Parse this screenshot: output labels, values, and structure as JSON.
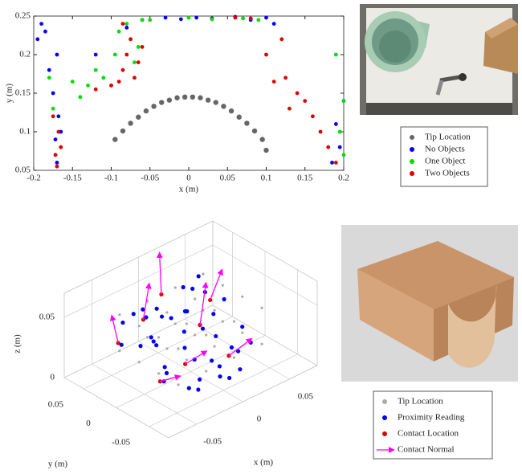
{
  "chart_data": [
    {
      "type": "scatter",
      "xlabel": "x (m)",
      "ylabel": "y (m)",
      "xlim": [
        -0.2,
        0.2
      ],
      "ylim": [
        0.05,
        0.25
      ],
      "xticks": [
        -0.2,
        -0.15,
        -0.1,
        -0.05,
        0,
        0.05,
        0.1,
        0.15,
        0.2
      ],
      "yticks": [
        0.05,
        0.1,
        0.15,
        0.2,
        0.25
      ],
      "grid": false,
      "legend": "outside-right",
      "series": [
        {
          "name": "Tip Location",
          "color": "#666666",
          "x": [
            -0.095,
            -0.085,
            -0.075,
            -0.065,
            -0.055,
            -0.045,
            -0.035,
            -0.025,
            -0.015,
            -0.005,
            0.005,
            0.015,
            0.025,
            0.035,
            0.045,
            0.055,
            0.065,
            0.075,
            0.085,
            0.095,
            0.1
          ],
          "y": [
            0.09,
            0.101,
            0.111,
            0.119,
            0.127,
            0.133,
            0.138,
            0.141,
            0.144,
            0.145,
            0.145,
            0.144,
            0.141,
            0.138,
            0.133,
            0.127,
            0.119,
            0.111,
            0.101,
            0.09,
            0.076
          ]
        },
        {
          "name": "No Objects",
          "color": "#0000ff",
          "x": [
            -0.17,
            -0.172,
            -0.168,
            -0.175,
            -0.17,
            -0.185,
            -0.19,
            -0.18,
            -0.195,
            -0.06,
            -0.03,
            -0.01,
            0.01,
            0.03,
            0.06,
            0.08,
            0.1,
            0.11,
            -0.08,
            -0.12,
            0.195,
            0.19,
            0.2,
            0.185,
            -0.165
          ],
          "y": [
            0.06,
            0.09,
            0.12,
            0.15,
            0.2,
            0.23,
            0.24,
            0.18,
            0.22,
            0.245,
            0.248,
            0.246,
            0.248,
            0.247,
            0.249,
            0.245,
            0.248,
            0.24,
            0.235,
            0.2,
            0.08,
            0.11,
            0.14,
            0.06,
            0.1
          ]
        },
        {
          "name": "One Object",
          "color": "#00dd00",
          "x": [
            -0.165,
            -0.175,
            -0.18,
            -0.15,
            -0.13,
            -0.11,
            -0.095,
            -0.09,
            -0.08,
            -0.075,
            -0.07,
            -0.065,
            -0.06,
            -0.1,
            -0.05,
            0.0,
            0.03,
            0.07,
            0.09,
            0.2,
            0.195,
            0.2,
            0.19,
            -0.14,
            -0.12
          ],
          "y": [
            0.08,
            0.13,
            0.17,
            0.165,
            0.16,
            0.17,
            0.2,
            0.23,
            0.24,
            0.22,
            0.19,
            0.21,
            0.245,
            0.16,
            0.245,
            0.248,
            0.246,
            0.247,
            0.245,
            0.14,
            0.1,
            0.07,
            0.2,
            0.145,
            0.18
          ]
        },
        {
          "name": "Two Objects",
          "color": "#e00000",
          "x": [
            -0.17,
            -0.172,
            -0.168,
            -0.175,
            -0.165,
            -0.12,
            -0.1,
            -0.09,
            -0.085,
            -0.08,
            -0.075,
            -0.07,
            -0.065,
            -0.06,
            -0.085,
            0.06,
            0.08,
            0.1,
            0.12,
            0.13,
            0.14,
            0.15,
            0.16,
            0.17,
            0.18,
            0.19,
            0.11,
            0.125
          ],
          "y": [
            0.055,
            0.07,
            0.1,
            0.12,
            0.08,
            0.155,
            0.16,
            0.165,
            0.18,
            0.2,
            0.22,
            0.17,
            0.19,
            0.21,
            0.24,
            0.248,
            0.247,
            0.2,
            0.22,
            0.13,
            0.15,
            0.14,
            0.12,
            0.1,
            0.08,
            0.06,
            0.165,
            0.17
          ]
        }
      ]
    },
    {
      "type": "scatter3d",
      "xlabel": "x (m)",
      "ylabel": "y (m)",
      "zlabel": "z (m)",
      "xlim": [
        -0.08,
        0.08
      ],
      "ylim": [
        -0.08,
        0.08
      ],
      "zlim": [
        0,
        0.07
      ],
      "xticks": [
        -0.05,
        0,
        0.05
      ],
      "yticks": [
        -0.05,
        0,
        0.05
      ],
      "zticks": [
        0,
        0.05
      ],
      "grid": true,
      "legend": "outside-right",
      "series": [
        {
          "name": "Tip Location",
          "color": "#aaaaaa",
          "x": [
            -0.045,
            -0.045,
            -0.045,
            -0.045,
            -0.015,
            -0.015,
            -0.015,
            -0.015,
            0.015,
            0.015,
            0.015,
            0.015,
            0.045,
            0.045,
            0.045,
            0.045,
            -0.045,
            -0.045,
            -0.045,
            -0.045,
            -0.015,
            -0.015,
            -0.015,
            -0.015,
            0.015,
            0.015,
            0.015,
            0.015,
            0.045,
            0.045,
            0.045,
            0.045
          ],
          "y": [
            -0.045,
            -0.015,
            0.015,
            0.045,
            -0.045,
            -0.015,
            0.015,
            0.045,
            -0.045,
            -0.015,
            0.015,
            0.045,
            -0.045,
            -0.015,
            0.015,
            0.045,
            -0.045,
            -0.015,
            0.015,
            0.045,
            -0.045,
            -0.015,
            0.015,
            0.045,
            -0.045,
            -0.015,
            0.015,
            0.045,
            -0.045,
            -0.015,
            0.015,
            0.045
          ],
          "z": [
            0.02,
            0.02,
            0.02,
            0.02,
            0.02,
            0.02,
            0.02,
            0.02,
            0.02,
            0.02,
            0.02,
            0.02,
            0.02,
            0.02,
            0.02,
            0.02,
            0.05,
            0.05,
            0.05,
            0.05,
            0.05,
            0.05,
            0.05,
            0.05,
            0.05,
            0.05,
            0.05,
            0.05,
            0.05,
            0.05,
            0.05,
            0.05
          ]
        },
        {
          "name": "Proximity Reading",
          "color": "#0000ff",
          "x": [
            -0.05,
            -0.04,
            -0.03,
            -0.02,
            -0.01,
            0,
            0.01,
            0.02,
            0.03,
            0.04,
            -0.045,
            -0.035,
            -0.025,
            -0.015,
            -0.005,
            0.005,
            0.015,
            0.025,
            0.035,
            0.045,
            -0.04,
            -0.02,
            0,
            0.02,
            0.04,
            -0.03,
            -0.01,
            0.01,
            0.03,
            -0.05,
            -0.03,
            -0.01,
            0.01,
            0.03,
            0.05,
            -0.04,
            -0.02,
            0,
            0.02,
            0.04
          ],
          "y": [
            -0.03,
            0.02,
            -0.04,
            0.04,
            -0.02,
            0.03,
            -0.045,
            0.01,
            -0.03,
            0.035,
            0.04,
            -0.01,
            0.025,
            -0.035,
            0.045,
            -0.025,
            0.03,
            -0.04,
            0.015,
            -0.015,
            0,
            0.045,
            -0.045,
            0.04,
            -0.035,
            0.01,
            -0.005,
            0.02,
            -0.02,
            0.035,
            0.045,
            0.03,
            -0.03,
            0.04,
            0.02,
            -0.02,
            -0.04,
            0.01,
            -0.01,
            0.045
          ],
          "z": [
            0.02,
            0.03,
            0.01,
            0.04,
            0.02,
            0.035,
            0.005,
            0.025,
            0.015,
            0.04,
            0.045,
            0.02,
            0.03,
            0.01,
            0.04,
            0.015,
            0.035,
            0.005,
            0.03,
            0.025,
            0.04,
            0.045,
            0.01,
            0.05,
            0.02,
            0.03,
            0.025,
            0.04,
            0.015,
            0.03,
            0.045,
            0.04,
            0.01,
            0.045,
            0.035,
            0.02,
            0.005,
            0.03,
            0.025,
            0.05
          ]
        },
        {
          "name": "Contact Location",
          "color": "#e00000",
          "x": [
            -0.05,
            -0.03,
            -0.02,
            0,
            0.02,
            0.035,
            -0.04,
            0.01
          ],
          "y": [
            0.04,
            0.03,
            -0.02,
            0.045,
            -0.03,
            0.02,
            -0.01,
            0.0
          ],
          "z": [
            0.03,
            0.045,
            0.02,
            0.05,
            0.015,
            0.04,
            0.01,
            0.035
          ]
        },
        {
          "name": "Contact Normal",
          "color": "#ff00ff",
          "x": [
            -0.05,
            -0.03,
            -0.02,
            0,
            0.02,
            0.035,
            -0.04,
            0.01
          ],
          "y": [
            0.04,
            0.03,
            -0.02,
            0.045,
            -0.03,
            0.02,
            -0.01,
            0.0
          ],
          "z": [
            0.03,
            0.045,
            0.02,
            0.05,
            0.015,
            0.04,
            0.01,
            0.035
          ],
          "u": [
            0,
            0.01,
            0.02,
            0.005,
            0.025,
            0.02,
            0.015,
            0.01
          ],
          "v": [
            0.01,
            0.005,
            -0.005,
            0.01,
            0,
            0.01,
            -0.01,
            0.005
          ],
          "w": [
            0.02,
            0.025,
            0.005,
            0.03,
            0.005,
            0.015,
            0.002,
            0.03
          ]
        }
      ]
    }
  ]
}
